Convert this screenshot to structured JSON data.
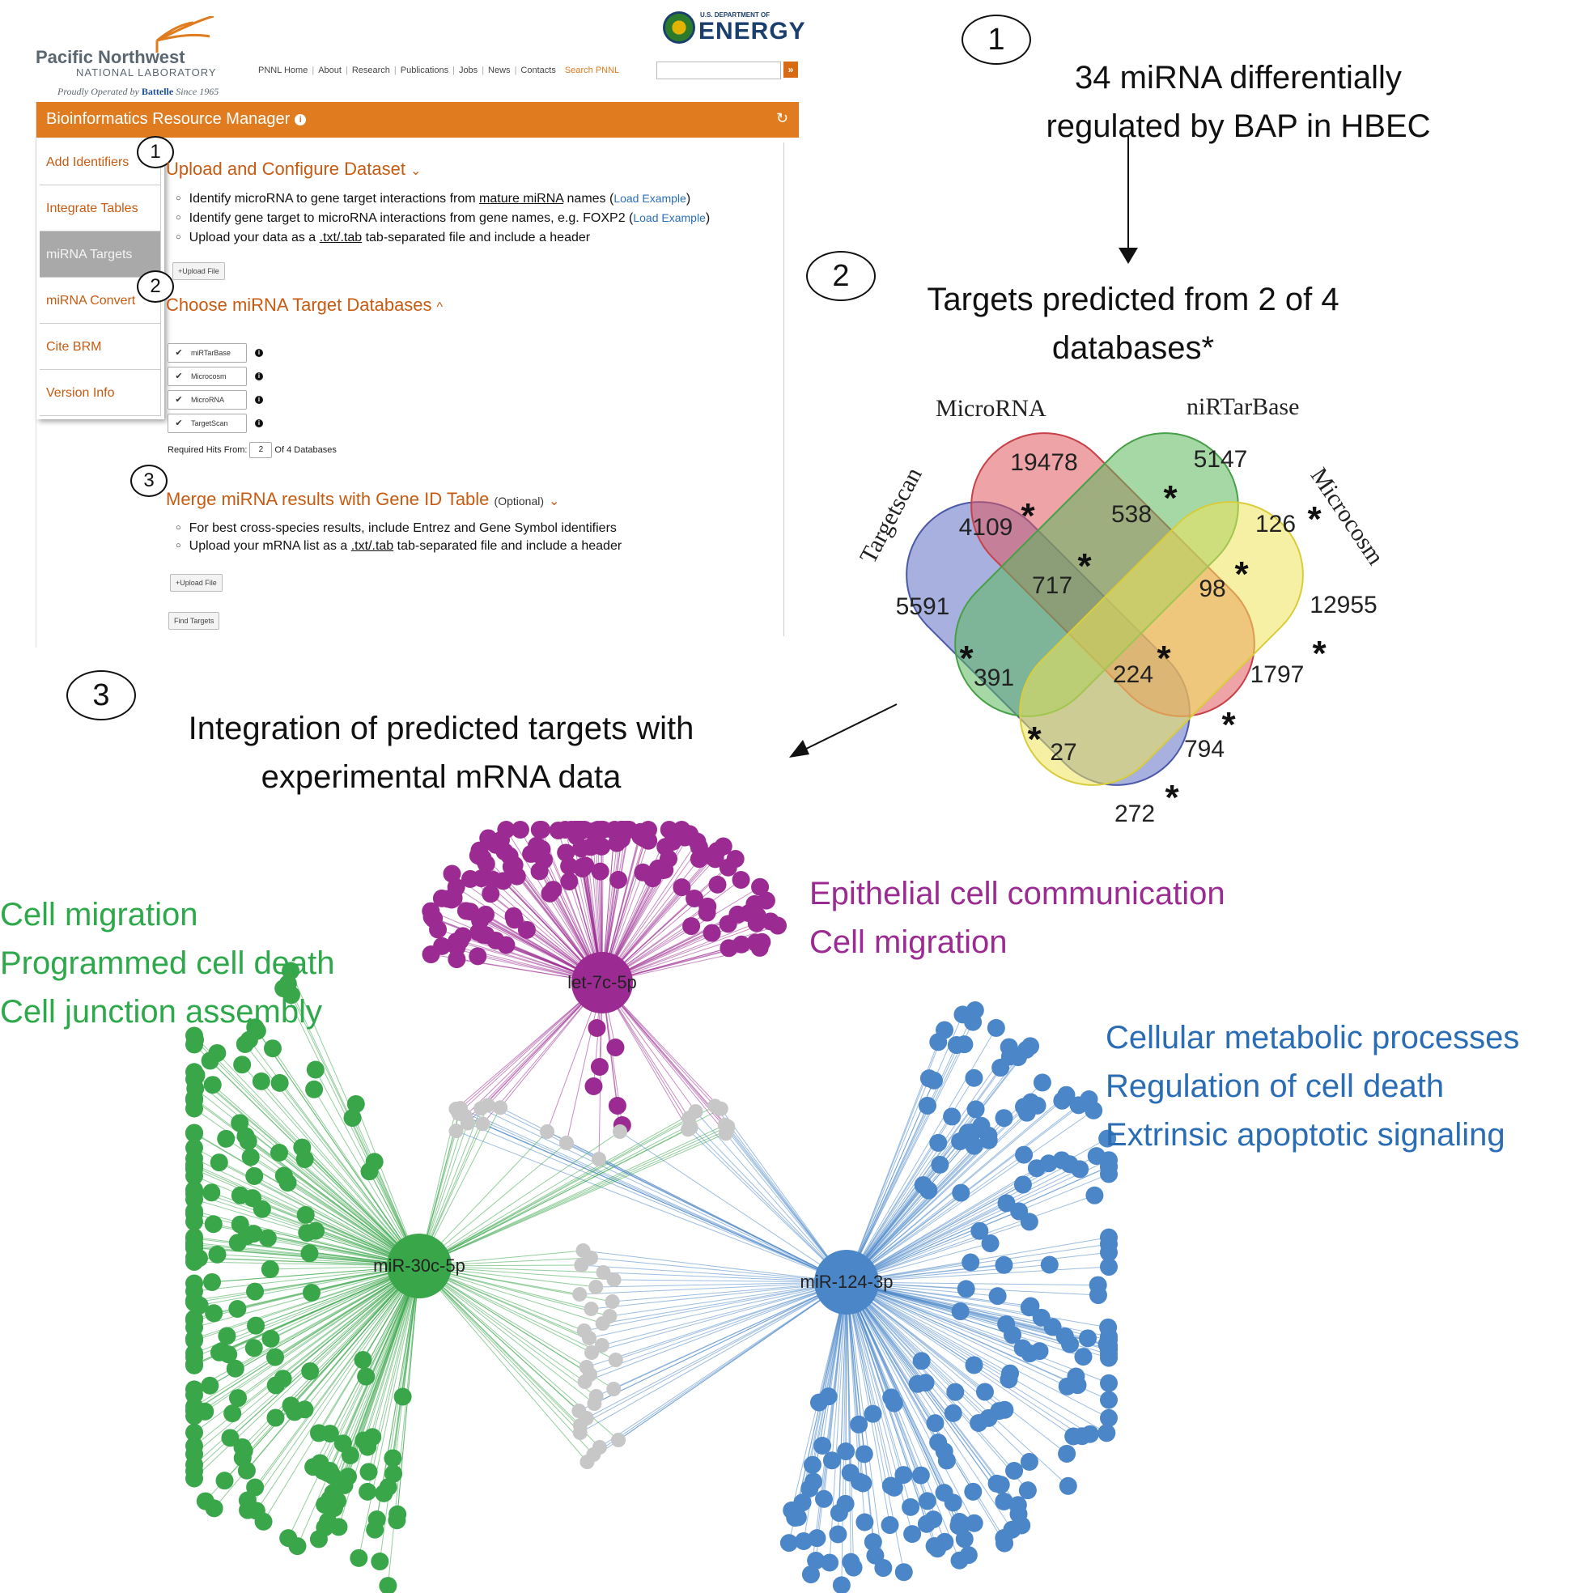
{
  "brm": {
    "org_line1": "Pacific Northwest",
    "org_line2": "NATIONAL LABORATORY",
    "org_tagline_pre": "Proudly Operated by",
    "org_tagline_brand": "Battelle",
    "org_tagline_post": "Since 1965",
    "doe_small": "U.S. DEPARTMENT OF",
    "doe_big": "ENERGY",
    "nav": [
      "PNNL Home",
      "About",
      "Research",
      "Publications",
      "Jobs",
      "News",
      "Contacts"
    ],
    "search_label": "Search PNNL",
    "search_go": "»",
    "app_title": "Bioinformatics Resource Manager",
    "info_glyph": "i",
    "refresh_glyph": "↻",
    "sidebar": [
      "Add Identifiers",
      "Integrate Tables",
      "miRNA Targets",
      "miRNA Convert",
      "Cite BRM",
      "Version Info"
    ],
    "active_sidebar_index": 2,
    "section1": {
      "num": "1",
      "title": "Upload and Configure Dataset",
      "chevron": "⌄",
      "bullets": [
        {
          "pre": "Identify microRNA to gene target interactions from ",
          "ul": "mature miRNA",
          "post": " names (",
          "link": "Load Example",
          "end": ")"
        },
        {
          "pre": "Identify gene target to microRNA interactions from gene names, e.g. FOXP2 (",
          "ul": "",
          "post": "",
          "link": "Load Example",
          "end": ")"
        },
        {
          "pre": "Upload your data as a ",
          "ul": ".txt/.tab",
          "post": " tab-separated file and include a header",
          "link": "",
          "end": ""
        }
      ],
      "upload_button": "+Upload File"
    },
    "section2": {
      "num": "2",
      "title": "Choose miRNA Target Databases",
      "chevron": "^",
      "check_glyph": "✔",
      "databases": [
        "miRTarBase",
        "Microcosm",
        "MicroRNA",
        "TargetScan"
      ],
      "required_label": "Required Hits From:",
      "required_value": "2",
      "required_suffix": "Of 4 Databases"
    },
    "section3": {
      "num": "3",
      "title": "Merge miRNA results with Gene ID Table",
      "optional": "(Optional)",
      "chevron": "⌄",
      "bullets": [
        {
          "pre": "For best cross-species results, include Entrez and Gene Symbol identifiers",
          "ul": "",
          "post": ""
        },
        {
          "pre": "Upload your mRNA list as a ",
          "ul": ".txt/.tab",
          "post": " tab-separated file and include a header"
        }
      ],
      "upload_button": "+Upload File",
      "find_button": "Find Targets"
    }
  },
  "steps": [
    {
      "num": "1",
      "lines": [
        "34 miRNA differentially",
        "regulated by BAP in HBEC"
      ]
    },
    {
      "num": "2",
      "lines": [
        "Targets predicted from 2 of 4",
        "databases*"
      ]
    },
    {
      "num": "3",
      "lines": [
        "Integration of predicted targets with",
        "experimental mRNA data"
      ]
    }
  ],
  "venn": {
    "sets": [
      {
        "name": "Targetscan",
        "color": "#5e6fc3"
      },
      {
        "name": "MicroRNA",
        "color": "#e0585e"
      },
      {
        "name": "niRTarBase",
        "color": "#5cb85c"
      },
      {
        "name": "Microcosm",
        "color": "#eee35a"
      }
    ],
    "regions": [
      {
        "value": "19478",
        "star": false
      },
      {
        "value": "5147",
        "star": false
      },
      {
        "value": "5591",
        "star": false
      },
      {
        "value": "12955",
        "star": false
      },
      {
        "value": "4109",
        "star": true
      },
      {
        "value": "538",
        "star": true
      },
      {
        "value": "126",
        "star": true
      },
      {
        "value": "717",
        "star": true
      },
      {
        "value": "98",
        "star": true
      },
      {
        "value": "391",
        "star": true
      },
      {
        "value": "224",
        "star": true
      },
      {
        "value": "1797",
        "star": true
      },
      {
        "value": "27",
        "star": true
      },
      {
        "value": "794",
        "star": true
      },
      {
        "value": "272",
        "star": true
      }
    ],
    "star_glyph": "*"
  },
  "network": {
    "hubs": [
      {
        "name": "let-7c-5p",
        "color": "#9b2b92"
      },
      {
        "name": "miR-30c-5p",
        "color": "#3aa64a"
      },
      {
        "name": "miR-124-3p",
        "color": "#4a86c8"
      }
    ],
    "shared_color": "#c7c7c7"
  },
  "go_terms": {
    "green": {
      "color": "#2da84a",
      "lines": [
        "Cell migration",
        "Programmed cell death",
        "Cell junction assembly"
      ]
    },
    "purple": {
      "color": "#9b2b92",
      "lines": [
        "Epithelial cell communication",
        "Cell migration"
      ]
    },
    "blue": {
      "color": "#2a6db5",
      "lines": [
        "Cellular metabolic processes",
        "Regulation of cell death",
        "Extrinsic apoptotic signaling"
      ]
    }
  }
}
